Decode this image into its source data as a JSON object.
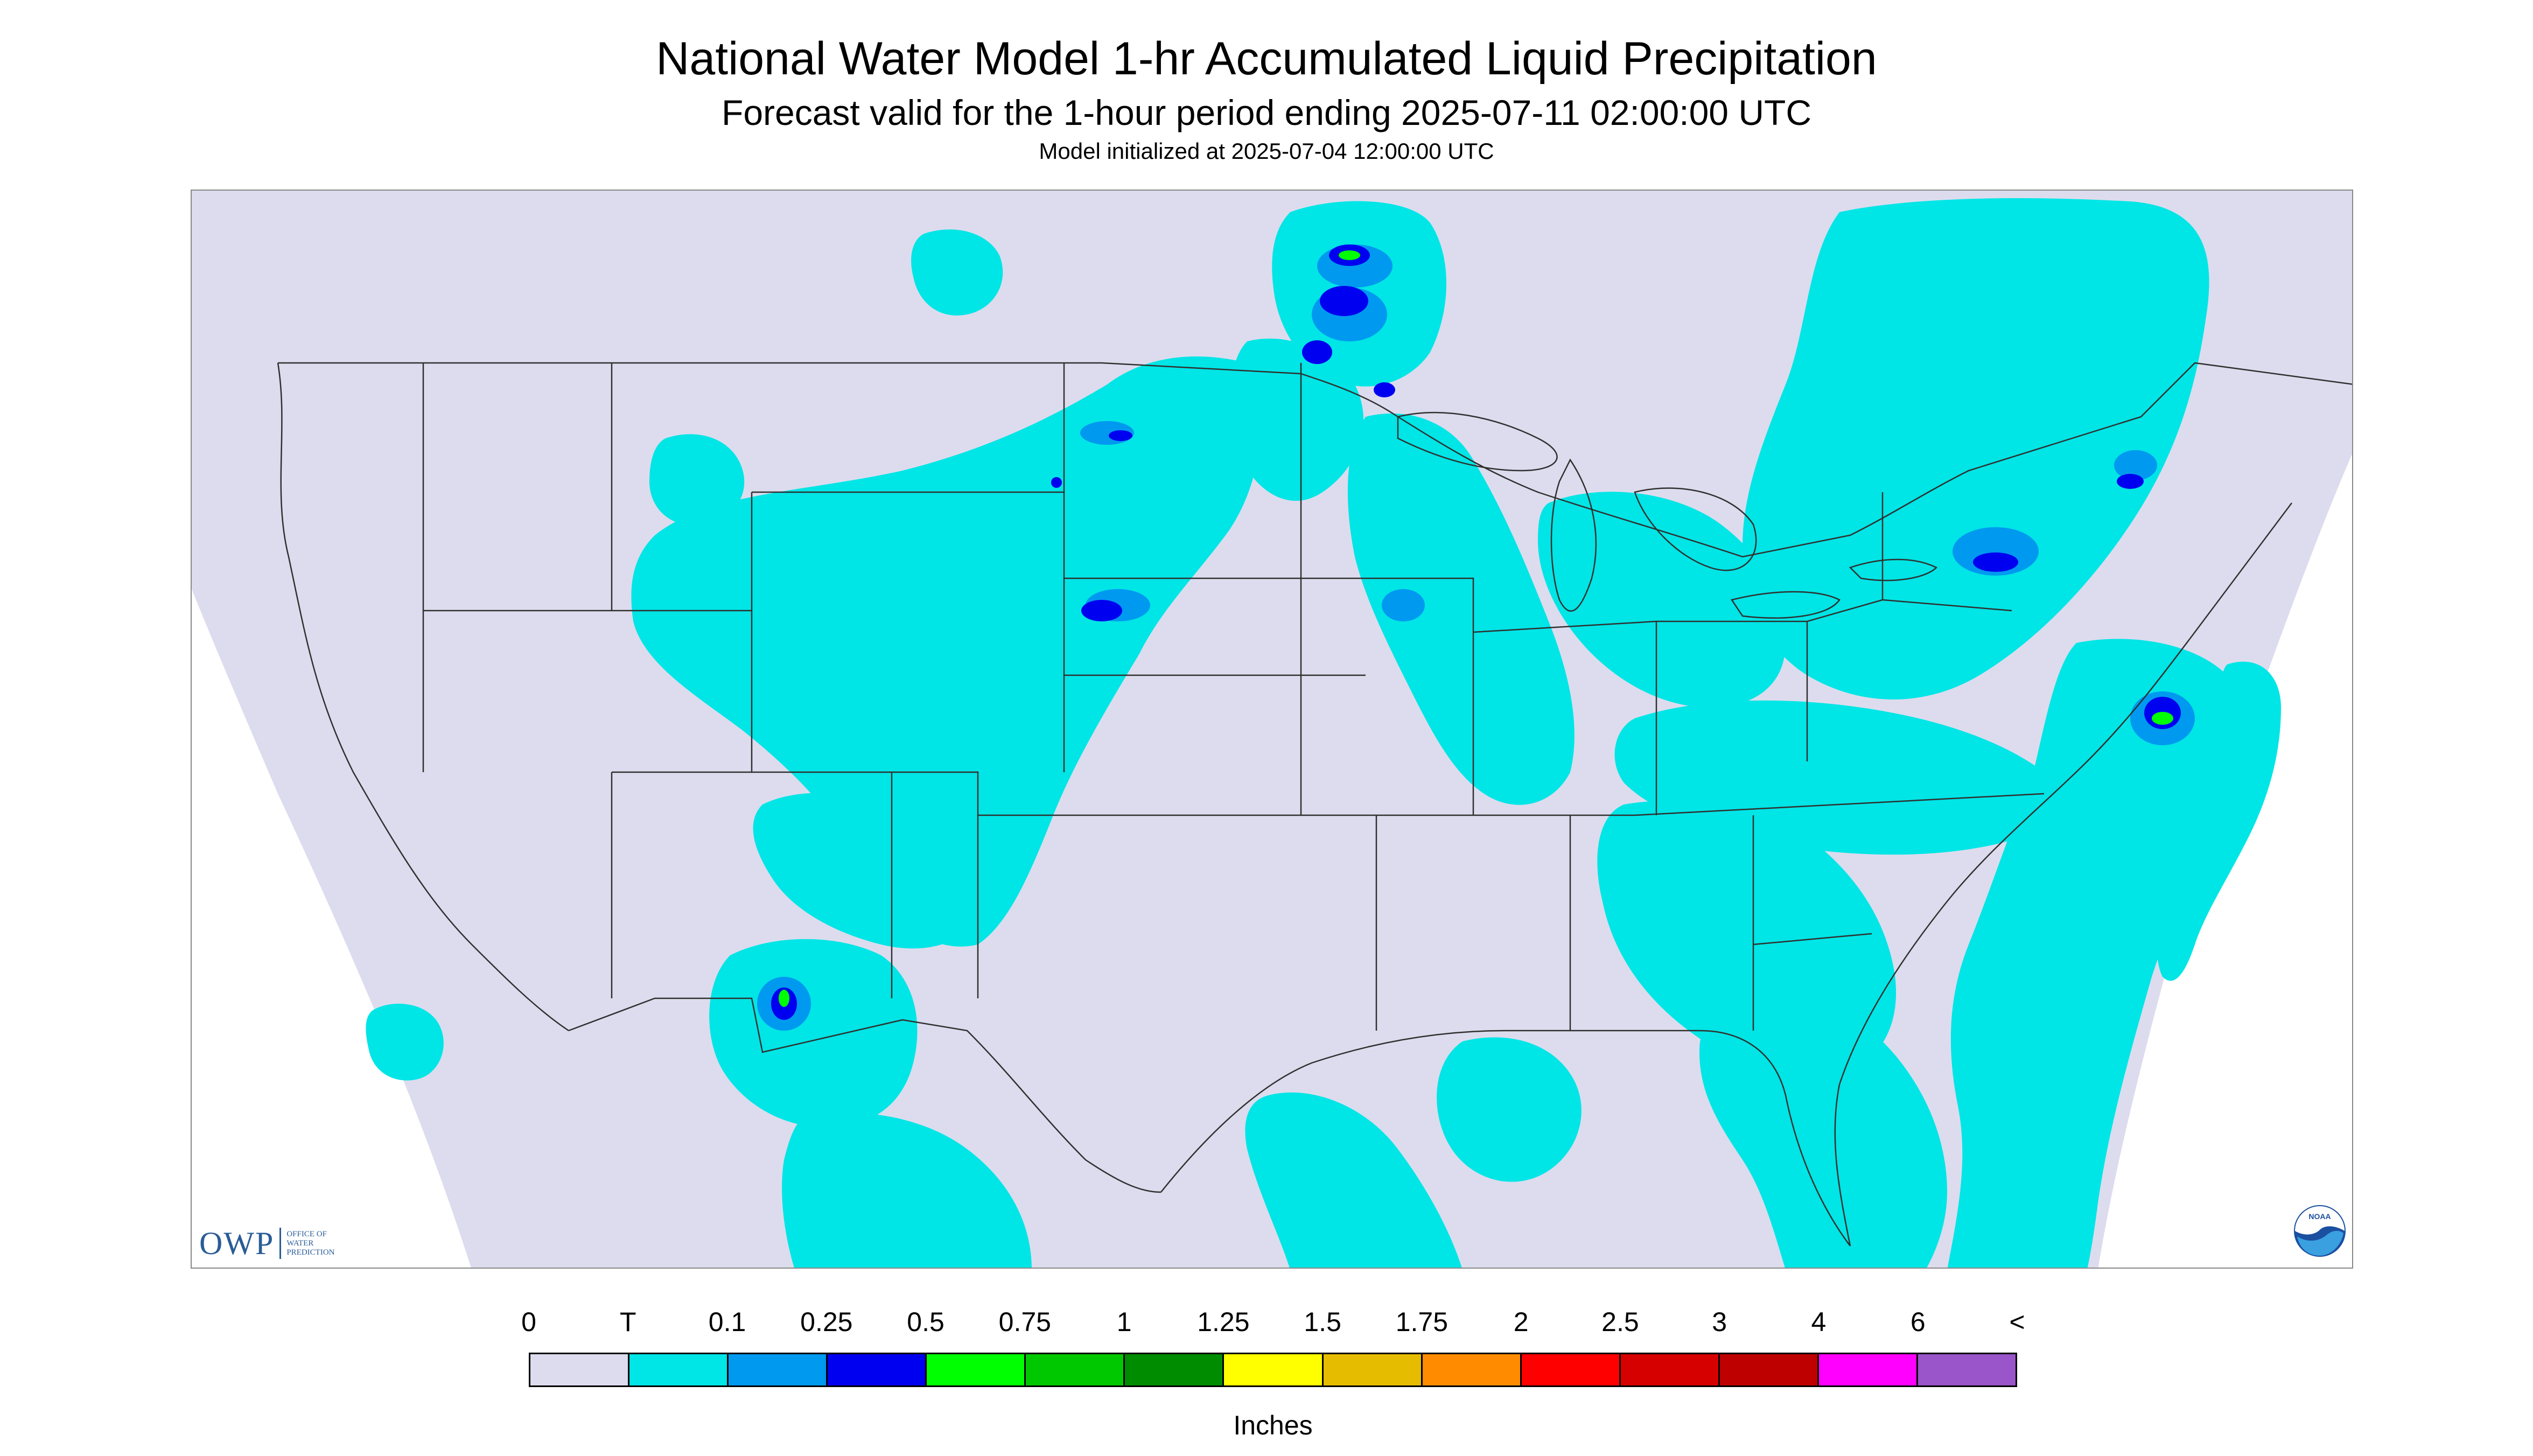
{
  "header": {
    "title": "National Water Model 1-hr Accumulated Liquid Precipitation",
    "subtitle": "Forecast valid for the 1-hour period ending 2025-07-11 02:00:00 UTC",
    "init": "Model initialized at 2025-07-04 12:00:00 UTC"
  },
  "logos": {
    "owp_mark": "OWP",
    "owp_lines": [
      "OFFICE OF",
      "WATER",
      "PREDICTION"
    ],
    "noaa_mark": "NOAA"
  },
  "legend": {
    "labels": [
      "0",
      "T",
      "0.1",
      "0.25",
      "0.5",
      "0.75",
      "1",
      "1.25",
      "1.5",
      "1.75",
      "2",
      "2.5",
      "3",
      "4",
      "6",
      "<"
    ],
    "colors": [
      "#dcdcee",
      "#00e5e5",
      "#0099f0",
      "#0000f0",
      "#00ff00",
      "#00c800",
      "#008c00",
      "#ffff00",
      "#e6bc00",
      "#ff8c00",
      "#ff0000",
      "#d70000",
      "#bf0000",
      "#ff00ff",
      "#9955c9"
    ],
    "unit": "Inches"
  },
  "colors": {
    "no_precip": "#dcdcee",
    "trace": "#00e5e5",
    "light": "#0099f0",
    "moderate": "#0000f0",
    "heavy": "#00ff00",
    "boundary": "#303030"
  }
}
